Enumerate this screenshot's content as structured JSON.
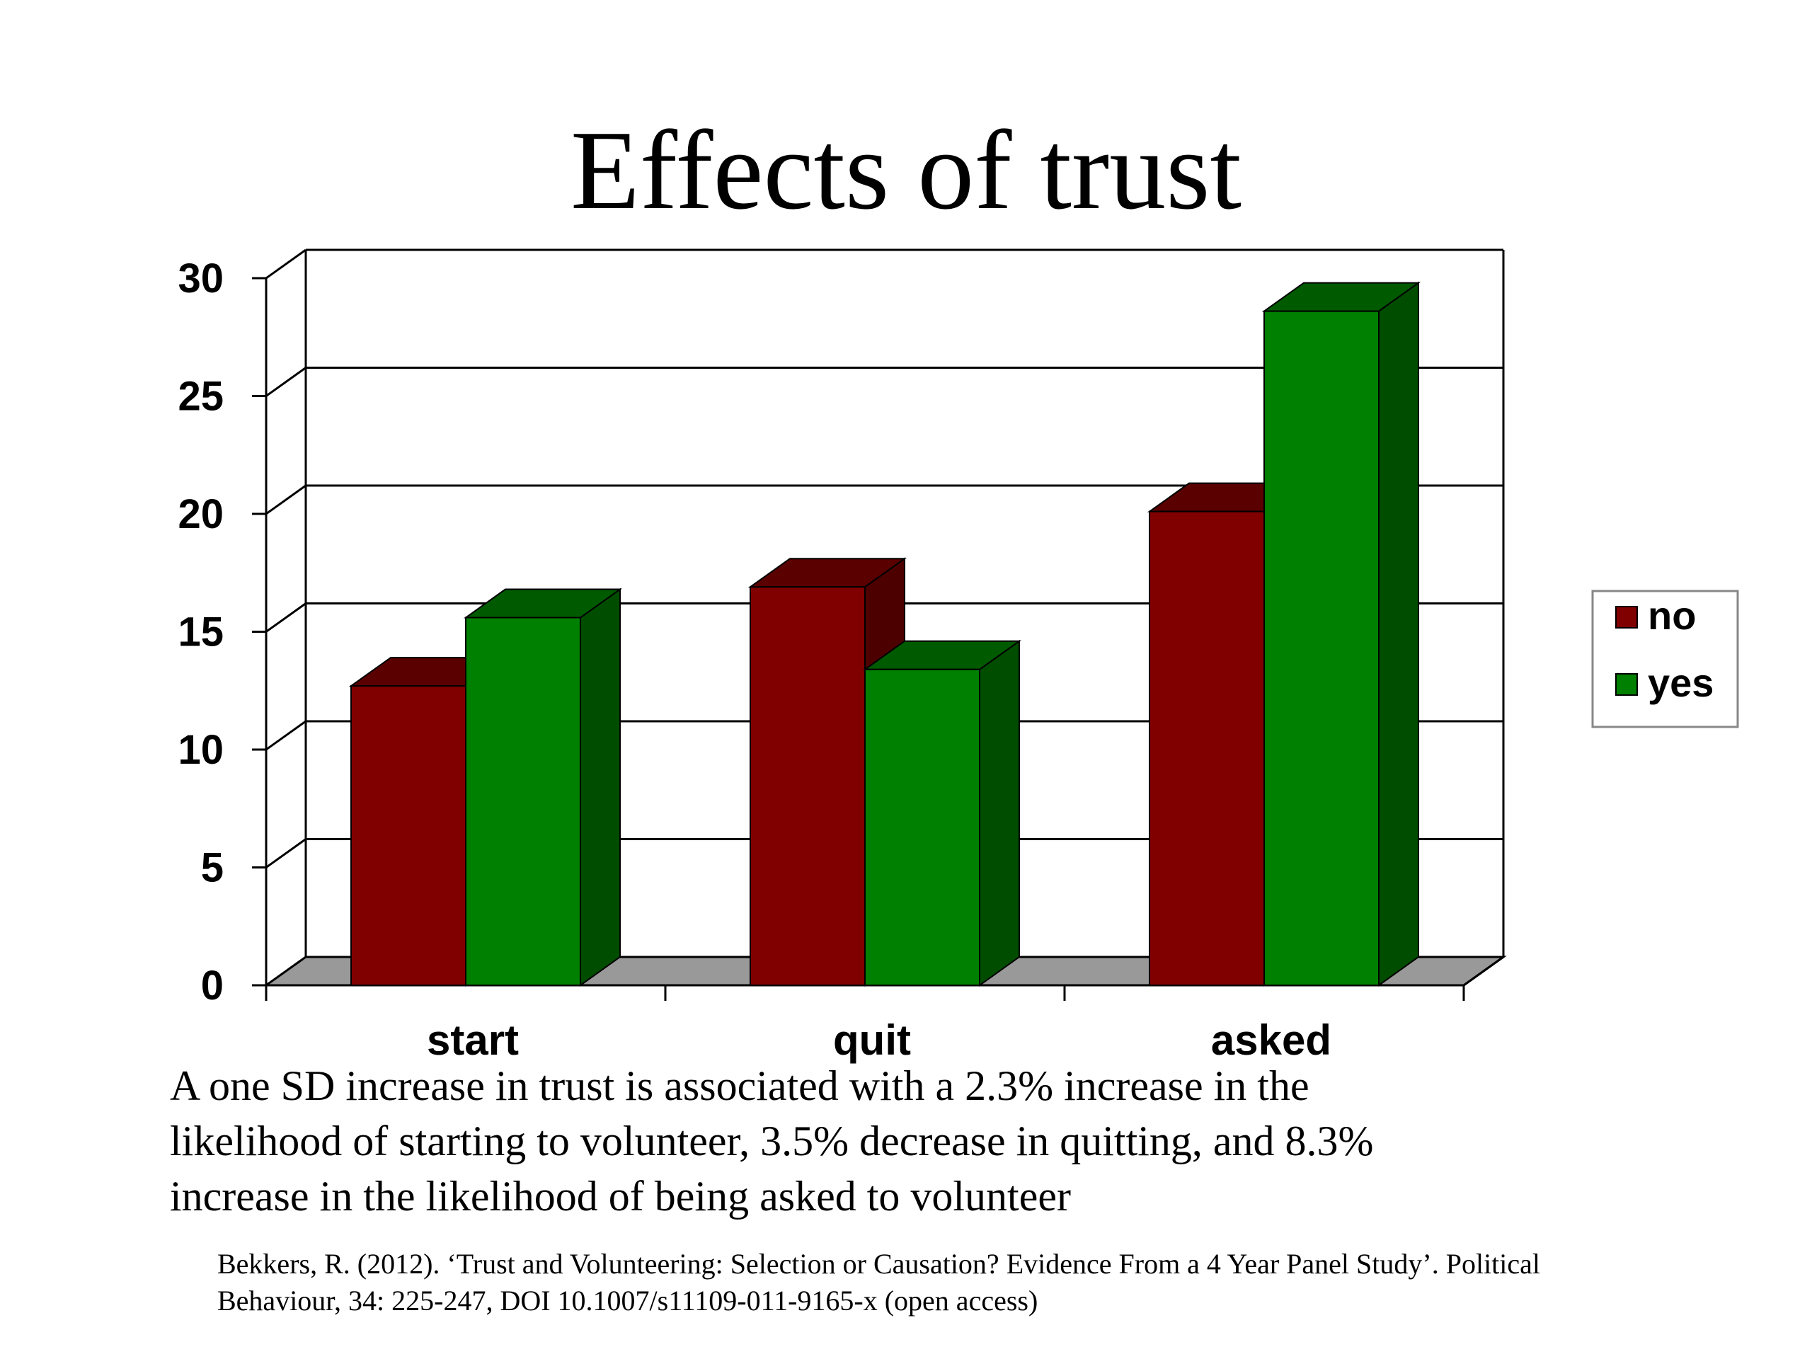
{
  "title": "Effects of trust",
  "caption_lines": [
    "A one SD increase in trust is associated with a 2.3% increase in the",
    "likelihood of starting to volunteer, 3.5% decrease in quitting, and  8.3%",
    "increase in the likelihood of being asked to volunteer"
  ],
  "citation_lines": [
    "Bekkers, R. (2012). ‘Trust and Volunteering: Selection or Causation? Evidence From a 4 Year Panel Study’. Political",
    "Behaviour, 34: 225-247, DOI 10.1007/s11109-011-9165-x (open access)"
  ],
  "colors": {
    "no": "#800000",
    "yes": "#008000",
    "floor": "#999999"
  },
  "chart_data": {
    "type": "bar",
    "style": "3d-clustered",
    "categories": [
      "start",
      "quit",
      "asked"
    ],
    "series": [
      {
        "name": "no",
        "values": [
          12.7,
          16.9,
          20.1
        ]
      },
      {
        "name": "yes",
        "values": [
          15.6,
          13.4,
          28.6
        ]
      }
    ],
    "ylim": [
      0,
      30
    ],
    "yticks": [
      0,
      5,
      10,
      15,
      20,
      25,
      30
    ],
    "grid": true,
    "legend": {
      "position": "right",
      "entries": [
        "no",
        "yes"
      ]
    }
  }
}
